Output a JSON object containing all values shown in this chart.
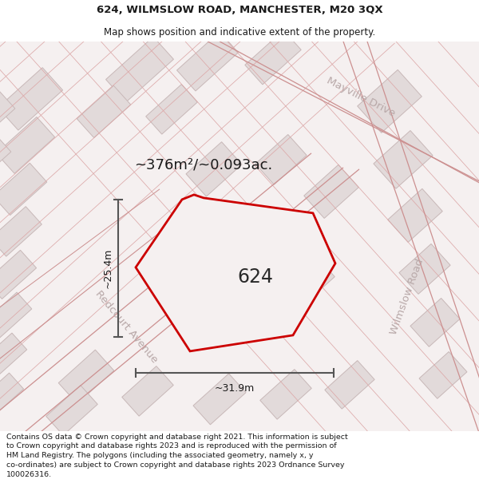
{
  "title": "624, WILMSLOW ROAD, MANCHESTER, M20 3QX",
  "subtitle": "Map shows position and indicative extent of the property.",
  "footer": "Contains OS data © Crown copyright and database right 2021. This information is subject to Crown copyright and database rights 2023 and is reproduced with the permission of HM Land Registry. The polygons (including the associated geometry, namely x, y co-ordinates) are subject to Crown copyright and database rights 2023 Ordnance Survey 100026316.",
  "area_label": "~376m²/~0.093ac.",
  "property_number": "624",
  "width_label": "~31.9m",
  "height_label": "~25.4m",
  "map_bg": "#f5f0f0",
  "block_color": "#e2dada",
  "block_edge": "#c8b8b8",
  "road_line_color": "#e0b0b0",
  "property_fill": "#f5f0f0",
  "property_edge": "#cc0000",
  "dim_color": "#555555",
  "street_label_color": "#b8a8a8",
  "title_fontsize": 9.5,
  "subtitle_fontsize": 8.5,
  "footer_fontsize": 6.8
}
